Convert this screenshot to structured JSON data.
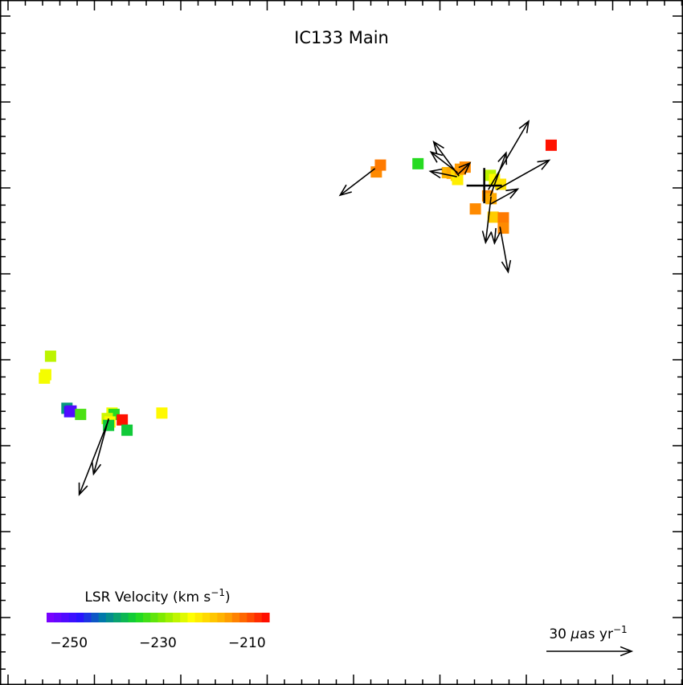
{
  "chart_data": {
    "type": "scatter",
    "title": "IC133 Main",
    "xlabel": "",
    "ylabel": "",
    "colorbar": {
      "label_main": "LSR Velocity (km s",
      "label_sup": "−1",
      "label_close": ")",
      "vmin": -255,
      "vmax": -205,
      "ticks": [
        "−250",
        "−230",
        "−210"
      ],
      "tick_values": [
        -250,
        -230,
        -210
      ]
    },
    "scale_arrow": {
      "label_value": "30",
      "label_mu": "μ",
      "label_unit": "as yr",
      "label_sup": "−1",
      "magnitude": 30
    },
    "reference_cross": {
      "x": 0.709,
      "y": 0.271
    },
    "points": [
      {
        "x": 0.551,
        "y": 0.251,
        "v": -213
      },
      {
        "x": 0.557,
        "y": 0.241,
        "v": -212
      },
      {
        "x": 0.612,
        "y": 0.239,
        "v": -234
      },
      {
        "x": 0.655,
        "y": 0.252,
        "v": -216
      },
      {
        "x": 0.662,
        "y": 0.253,
        "v": -215
      },
      {
        "x": 0.668,
        "y": 0.256,
        "v": -219
      },
      {
        "x": 0.67,
        "y": 0.262,
        "v": -221
      },
      {
        "x": 0.674,
        "y": 0.247,
        "v": -214
      },
      {
        "x": 0.681,
        "y": 0.244,
        "v": -213
      },
      {
        "x": 0.718,
        "y": 0.256,
        "v": -226
      },
      {
        "x": 0.724,
        "y": 0.262,
        "v": -222
      },
      {
        "x": 0.733,
        "y": 0.269,
        "v": -220
      },
      {
        "x": 0.714,
        "y": 0.286,
        "v": -213
      },
      {
        "x": 0.719,
        "y": 0.29,
        "v": -215
      },
      {
        "x": 0.696,
        "y": 0.305,
        "v": -213
      },
      {
        "x": 0.722,
        "y": 0.317,
        "v": -218
      },
      {
        "x": 0.737,
        "y": 0.318,
        "v": -212
      },
      {
        "x": 0.737,
        "y": 0.333,
        "v": -213
      },
      {
        "x": 0.807,
        "y": 0.212,
        "v": -206
      },
      {
        "x": 0.074,
        "y": 0.52,
        "v": -226
      },
      {
        "x": 0.067,
        "y": 0.547,
        "v": -223
      },
      {
        "x": 0.065,
        "y": 0.552,
        "v": -223
      },
      {
        "x": 0.098,
        "y": 0.596,
        "v": -240
      },
      {
        "x": 0.102,
        "y": 0.601,
        "v": -249
      },
      {
        "x": 0.104,
        "y": 0.6,
        "v": -251
      },
      {
        "x": 0.118,
        "y": 0.605,
        "v": -232
      },
      {
        "x": 0.164,
        "y": 0.603,
        "v": -223
      },
      {
        "x": 0.167,
        "y": 0.605,
        "v": -234
      },
      {
        "x": 0.157,
        "y": 0.611,
        "v": -225
      },
      {
        "x": 0.161,
        "y": 0.616,
        "v": -222
      },
      {
        "x": 0.159,
        "y": 0.621,
        "v": -236
      },
      {
        "x": 0.179,
        "y": 0.613,
        "v": -206
      },
      {
        "x": 0.186,
        "y": 0.628,
        "v": -236
      },
      {
        "x": 0.237,
        "y": 0.603,
        "v": -222
      }
    ],
    "vectors": [
      {
        "x": 0.549,
        "y": 0.246,
        "dx": -0.051,
        "dy": 0.039
      },
      {
        "x": 0.672,
        "y": 0.257,
        "dx": -0.037,
        "dy": -0.05
      },
      {
        "x": 0.67,
        "y": 0.252,
        "dx": -0.039,
        "dy": -0.03
      },
      {
        "x": 0.669,
        "y": 0.258,
        "dx": -0.039,
        "dy": -0.008
      },
      {
        "x": 0.67,
        "y": 0.255,
        "dx": 0.018,
        "dy": -0.017
      },
      {
        "x": 0.715,
        "y": 0.277,
        "dx": 0.059,
        "dy": -0.1
      },
      {
        "x": 0.718,
        "y": 0.286,
        "dx": 0.023,
        "dy": -0.063
      },
      {
        "x": 0.727,
        "y": 0.277,
        "dx": 0.077,
        "dy": -0.043
      },
      {
        "x": 0.718,
        "y": 0.298,
        "dx": 0.04,
        "dy": -0.022
      },
      {
        "x": 0.719,
        "y": 0.287,
        "dx": -0.008,
        "dy": 0.067
      },
      {
        "x": 0.726,
        "y": 0.333,
        "dx": -0.002,
        "dy": 0.022
      },
      {
        "x": 0.732,
        "y": 0.331,
        "dx": 0.012,
        "dy": 0.066
      },
      {
        "x": 0.159,
        "y": 0.611,
        "dx": -0.022,
        "dy": 0.081
      },
      {
        "x": 0.159,
        "y": 0.613,
        "dx": -0.043,
        "dy": 0.109
      }
    ]
  }
}
